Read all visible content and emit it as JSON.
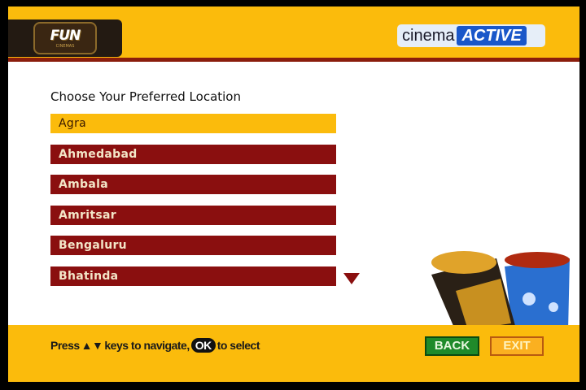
{
  "header": {
    "brand_logo": "FUN CINEMAS",
    "partner_logo_prefix": "cinema",
    "partner_logo_suffix": "ACTIVE"
  },
  "title": "Choose Your Preferred Location",
  "locations": [
    {
      "label": "Agra",
      "selected": true
    },
    {
      "label": "Ahmedabad",
      "selected": false
    },
    {
      "label": "Ambala",
      "selected": false
    },
    {
      "label": "Amritsar",
      "selected": false
    },
    {
      "label": "Bengaluru",
      "selected": false
    },
    {
      "label": "Bhatinda",
      "selected": false
    }
  ],
  "footer": {
    "hint_press": "Press",
    "hint_keys": "▲▼",
    "hint_navigate": "keys to navigate,",
    "ok_label": "OK",
    "hint_select": "to select",
    "back_label": "BACK",
    "exit_label": "EXIT"
  },
  "colors": {
    "accent": "#fbbb0c",
    "item": "#8a0f0f",
    "back": "#1f8a2a",
    "exit": "#fbb020"
  }
}
